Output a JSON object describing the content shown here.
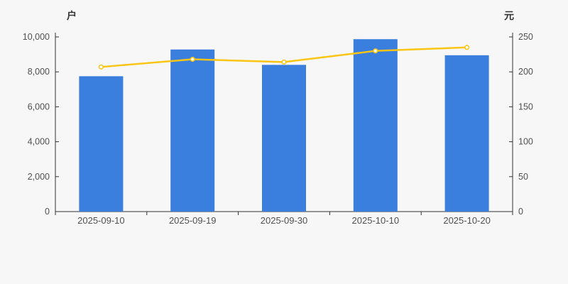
{
  "chart_data": {
    "type": "bar",
    "title": "",
    "categories": [
      "2025-09-10",
      "2025-09-19",
      "2025-09-30",
      "2025-10-10",
      "2025-10-20"
    ],
    "series": [
      {
        "id": "bars",
        "type": "bar",
        "axis": "left",
        "values": [
          7750,
          9280,
          8400,
          9870,
          8950
        ],
        "color": "#3a7ede"
      },
      {
        "id": "line",
        "type": "line",
        "axis": "right",
        "values": [
          207,
          218,
          214,
          230,
          235
        ],
        "color": "#fcc513",
        "marker_fill": "#ffffff"
      }
    ],
    "left_axis": {
      "name": "户",
      "min": 0,
      "max": 10000,
      "tick_interval": 2000,
      "tick_labels": [
        "0",
        "2,000",
        "4,000",
        "6,000",
        "8,000",
        "10,000"
      ]
    },
    "right_axis": {
      "name": "元",
      "min": 0,
      "max": 250,
      "tick_interval": 50,
      "tick_labels": [
        "0",
        "50",
        "100",
        "150",
        "200",
        "250"
      ]
    },
    "grid": false,
    "legend": "none",
    "background_color": "#f7f7f8",
    "axis_line_color": "#333333",
    "tick_label_color": "#505050"
  }
}
